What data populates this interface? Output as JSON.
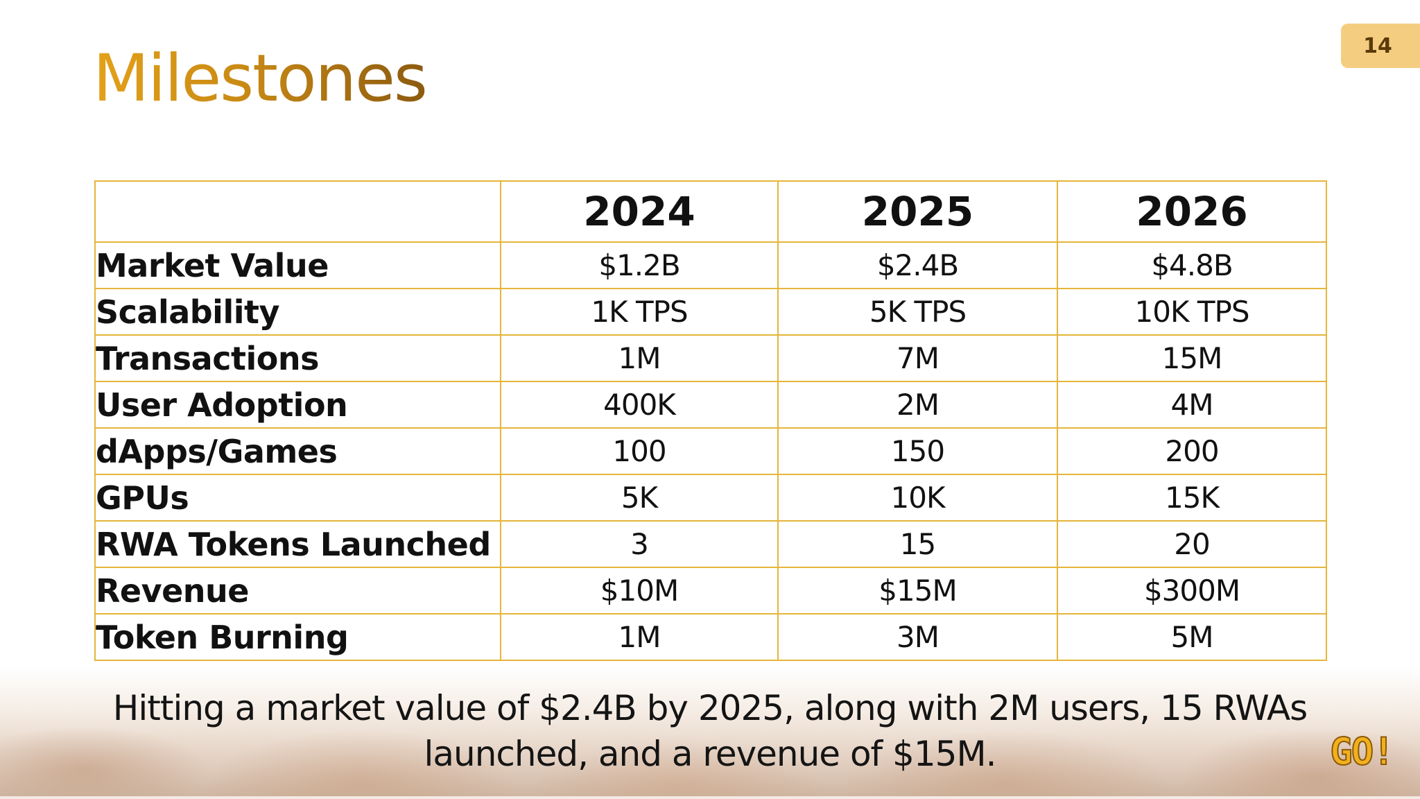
{
  "slide": {
    "title": "Milestones",
    "page_number": "14",
    "summary_line1": "Hitting a market value of $2.4B by 2025, along with 2M users, 15 RWAs",
    "summary_line2": "launched, and a revenue of $15M.",
    "logo_text": "GO!"
  },
  "table": {
    "corner": "",
    "years": [
      "2024",
      "2025",
      "2026"
    ],
    "rows": [
      {
        "label": "Market Value",
        "values": [
          "$1.2B",
          "$2.4B",
          "$4.8B"
        ]
      },
      {
        "label": "Scalability",
        "values": [
          "1K TPS",
          "5K TPS",
          "10K TPS"
        ]
      },
      {
        "label": "Transactions",
        "values": [
          "1M",
          "7M",
          "15M"
        ]
      },
      {
        "label": "User Adoption",
        "values": [
          "400K",
          "2M",
          "4M"
        ]
      },
      {
        "label": "dApps/Games",
        "values": [
          "100",
          "150",
          "200"
        ]
      },
      {
        "label": "GPUs",
        "values": [
          "5K",
          "10K",
          "15K"
        ]
      },
      {
        "label": "RWA Tokens Launched",
        "values": [
          "3",
          "15",
          "20"
        ]
      },
      {
        "label": "Revenue",
        "values": [
          "$10M",
          "$15M",
          "$300M"
        ]
      },
      {
        "label": "Token Burning",
        "values": [
          "1M",
          "3M",
          "5M"
        ]
      }
    ]
  },
  "colors": {
    "title_gradient_start": "#e3a11a",
    "title_gradient_end": "#8c5a10",
    "table_border": "#e6b53a",
    "badge_background": "#f5cd80",
    "logo": "#f2b01e"
  }
}
